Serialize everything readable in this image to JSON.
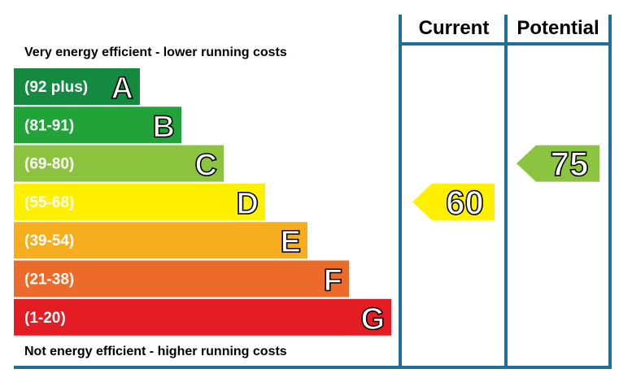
{
  "chart_data": {
    "type": "bar",
    "top_caption": "Very energy efficient - lower running costs",
    "bottom_caption": "Not energy efficient - higher running costs",
    "columns": {
      "current_label": "Current",
      "potential_label": "Potential"
    },
    "bands": [
      {
        "letter": "A",
        "range": "(92 plus)",
        "color": "#138a3f"
      },
      {
        "letter": "B",
        "range": "(81-91)",
        "color": "#22a33a"
      },
      {
        "letter": "C",
        "range": "(69-80)",
        "color": "#8cc43f"
      },
      {
        "letter": "D",
        "range": "(55-68)",
        "color": "#fff000"
      },
      {
        "letter": "E",
        "range": "(39-54)",
        "color": "#f6ae1e"
      },
      {
        "letter": "F",
        "range": "(21-38)",
        "color": "#ec6a2a"
      },
      {
        "letter": "G",
        "range": "(1-20)",
        "color": "#e31d23"
      }
    ],
    "ratings": {
      "current": {
        "value": "60",
        "band": "D",
        "color": "#fff000"
      },
      "potential": {
        "value": "75",
        "band": "C",
        "color": "#8cc43f"
      }
    },
    "frame_color": "#1f6f9a"
  }
}
